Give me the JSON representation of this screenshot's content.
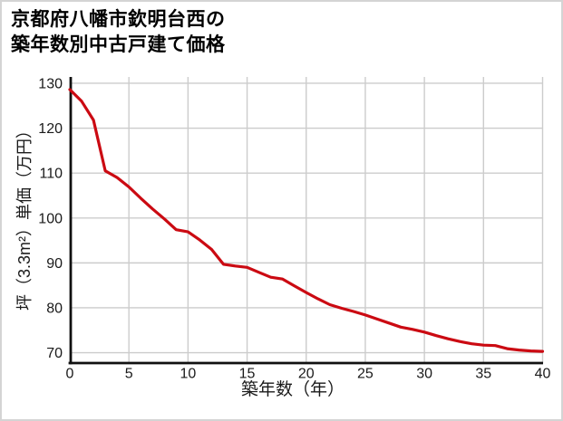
{
  "page": {
    "background_color": "#ffffff",
    "border_color": "#d4d4d4"
  },
  "chart_data": {
    "type": "line",
    "title_lines": [
      "京都府八幡市欽明台西の",
      "築年数別中古戸建て価格"
    ],
    "xlabel": "築年数（年）",
    "ylabel": "坪（3.3m²）単価（万円）",
    "x": [
      0,
      1,
      2,
      3,
      4,
      5,
      6,
      7,
      8,
      9,
      10,
      11,
      12,
      13,
      14,
      15,
      16,
      17,
      18,
      19,
      20,
      21,
      22,
      23,
      24,
      25,
      26,
      27,
      28,
      29,
      30,
      31,
      32,
      33,
      34,
      35,
      36,
      37,
      38,
      39,
      40
    ],
    "values": [
      128.6,
      126.0,
      121.8,
      110.5,
      109.0,
      106.9,
      104.4,
      102.0,
      99.8,
      97.4,
      96.9,
      95.1,
      93.0,
      89.7,
      89.3,
      89.0,
      87.9,
      86.8,
      86.4,
      84.9,
      83.4,
      82.0,
      80.7,
      79.9,
      79.2,
      78.4,
      77.5,
      76.6,
      75.7,
      75.2,
      74.6,
      73.8,
      73.1,
      72.5,
      72.0,
      71.7,
      71.6,
      70.9,
      70.6,
      70.4,
      70.3
    ],
    "xlim": [
      0,
      40
    ],
    "ylim": [
      67.7,
      131.4
    ],
    "x_ticks": [
      0,
      5,
      10,
      15,
      20,
      25,
      30,
      35,
      40
    ],
    "y_ticks": [
      70,
      80,
      90,
      100,
      110,
      120,
      130
    ],
    "grid": "on",
    "legend": "none",
    "line_color": "#cb0a12",
    "grid_color": "#cccccc",
    "axis_color": "#111111",
    "tick_label_color": "#1a1a1a"
  }
}
